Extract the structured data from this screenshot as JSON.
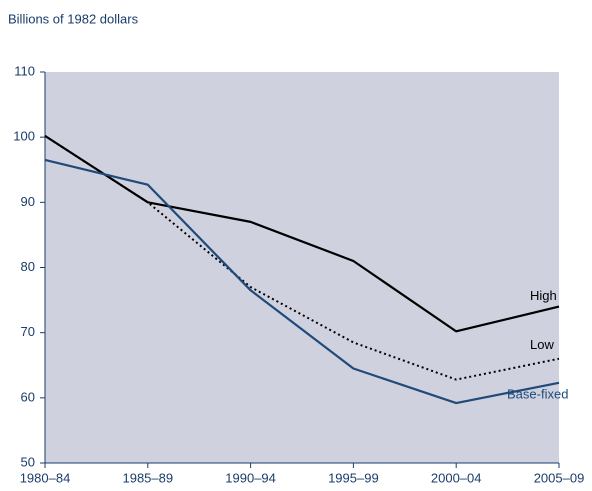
{
  "chart_data": {
    "type": "line",
    "title": "Billions of 1982 dollars",
    "categories": [
      "1980–84",
      "1985–89",
      "1990–94",
      "1995–99",
      "2000–04",
      "2005–09"
    ],
    "series": [
      {
        "name": "High",
        "color": "#000000",
        "line_style": "solid",
        "values": [
          100.2,
          90,
          87,
          81,
          70.2,
          74
        ]
      },
      {
        "name": "Low",
        "color": "#000000",
        "line_style": "dotted",
        "values": [
          100.2,
          90,
          77,
          68.5,
          62.8,
          66
        ]
      },
      {
        "name": "Base-fixed",
        "color": "#1f4a7a",
        "line_style": "solid",
        "values": [
          96.5,
          92.7,
          76.5,
          64.5,
          59.2,
          62.3
        ]
      }
    ],
    "ylim": [
      50,
      110
    ],
    "yticks": [
      50,
      60,
      70,
      80,
      90,
      100,
      110
    ],
    "plot_background": "#cfd1df"
  }
}
